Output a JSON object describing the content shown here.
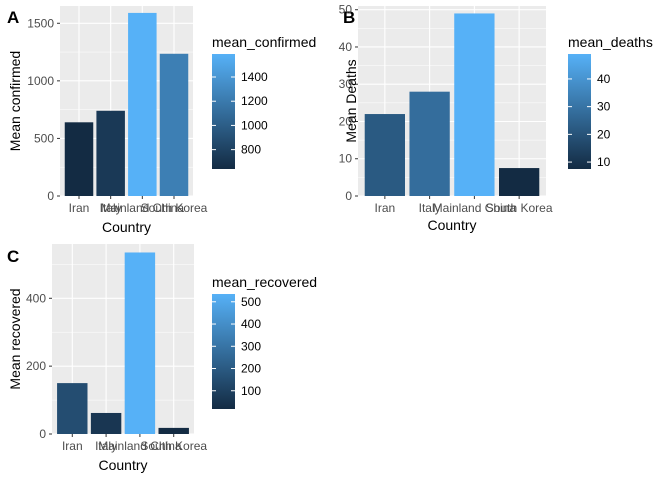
{
  "colors": {
    "panel_bg": "#ebebeb",
    "grid_major": "#ffffff",
    "grad_low": "#132b43",
    "grad_high": "#56b1f7"
  },
  "chart_data": [
    {
      "type": "bar",
      "tag": "A",
      "categories": [
        "Iran",
        "Italy",
        "Mainland China",
        "South Korea"
      ],
      "values": [
        640,
        740,
        1590,
        1235
      ],
      "xlabel": "Country",
      "ylabel": "Mean confirmed",
      "ylim": [
        0,
        1650
      ],
      "yticks": [
        0,
        500,
        1000,
        1500
      ],
      "legend": {
        "title": "mean_confirmed",
        "ticks": [
          800,
          1000,
          1200,
          1400
        ],
        "range": [
          640,
          1590
        ]
      },
      "grid": true
    },
    {
      "type": "bar",
      "tag": "B",
      "categories": [
        "Iran",
        "Italy",
        "Mainland China",
        "South Korea"
      ],
      "values": [
        22,
        28,
        49,
        7.5
      ],
      "xlabel": "Country",
      "ylabel": "Mean Deaths",
      "ylim": [
        0,
        51
      ],
      "yticks": [
        0,
        10,
        20,
        30,
        40,
        50
      ],
      "legend": {
        "title": "mean_deaths",
        "ticks": [
          10,
          20,
          30,
          40
        ],
        "range": [
          7.5,
          49
        ]
      },
      "grid": true
    },
    {
      "type": "bar",
      "tag": "C",
      "categories": [
        "Iran",
        "Italy",
        "Mainland China",
        "South Korea"
      ],
      "values": [
        150,
        62,
        535,
        18
      ],
      "xlabel": "Country",
      "ylabel": "Mean recovered",
      "ylim": [
        0,
        560
      ],
      "yticks": [
        0,
        200,
        400
      ],
      "legend": {
        "title": "mean_recovered",
        "ticks": [
          100,
          200,
          300,
          400,
          500
        ],
        "range": [
          18,
          535
        ]
      },
      "grid": true
    }
  ]
}
